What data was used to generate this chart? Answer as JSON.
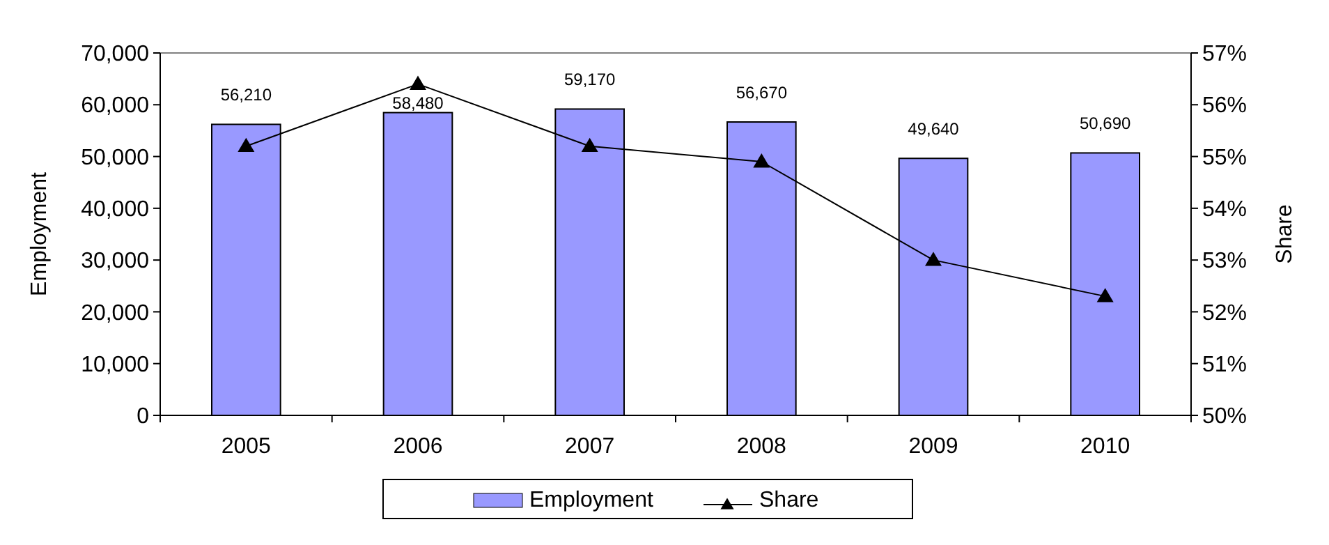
{
  "chart_data": {
    "type": "bar",
    "categories": [
      "2005",
      "2006",
      "2007",
      "2008",
      "2009",
      "2010"
    ],
    "series": [
      {
        "name": "Employment",
        "color": "#9999ff",
        "values": [
          56210,
          58480,
          59170,
          56670,
          49640,
          50690
        ],
        "value_labels": [
          "56,210",
          "58,480",
          "59,170",
          "56,670",
          "49,640",
          "50,690"
        ]
      },
      {
        "name": "Share",
        "type": "line",
        "axis": "y2",
        "color": "#000000",
        "marker": "triangle",
        "values": [
          55.2,
          56.4,
          55.2,
          54.9,
          53.0,
          52.3
        ]
      }
    ],
    "ylabel": "Employment",
    "y2label": "Share",
    "ylim": [
      0,
      70000
    ],
    "yticks": [
      {
        "value": 0,
        "label": "0"
      },
      {
        "value": 10000,
        "label": "10,000"
      },
      {
        "value": 20000,
        "label": "20,000"
      },
      {
        "value": 30000,
        "label": "30,000"
      },
      {
        "value": 40000,
        "label": "40,000"
      },
      {
        "value": 50000,
        "label": "50,000"
      },
      {
        "value": 60000,
        "label": "60,000"
      },
      {
        "value": 70000,
        "label": "70,000"
      }
    ],
    "y2lim": [
      50,
      57
    ],
    "y2ticks": [
      {
        "value": 50,
        "label": "50%"
      },
      {
        "value": 51,
        "label": "51%"
      },
      {
        "value": 52,
        "label": "52%"
      },
      {
        "value": 53,
        "label": "53%"
      },
      {
        "value": 54,
        "label": "54%"
      },
      {
        "value": 55,
        "label": "55%"
      },
      {
        "value": 56,
        "label": "56%"
      },
      {
        "value": 57,
        "label": "57%"
      }
    ],
    "grid": false,
    "legend": "bottom"
  }
}
